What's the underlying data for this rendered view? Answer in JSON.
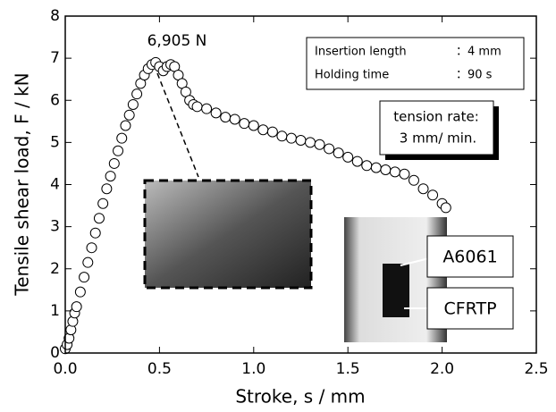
{
  "chart_data": {
    "type": "scatter",
    "x_label": "Stroke, s / mm",
    "y_label": "Tensile shear load, F / kN",
    "x": [
      0,
      0.01,
      0.02,
      0.03,
      0.04,
      0.05,
      0.06,
      0.08,
      0.1,
      0.12,
      0.14,
      0.16,
      0.18,
      0.2,
      0.22,
      0.24,
      0.26,
      0.28,
      0.3,
      0.32,
      0.34,
      0.36,
      0.38,
      0.4,
      0.42,
      0.44,
      0.46,
      0.48,
      0.5,
      0.52,
      0.54,
      0.56,
      0.58,
      0.6,
      0.62,
      0.64,
      0.66,
      0.68,
      0.7,
      0.75,
      0.8,
      0.85,
      0.9,
      0.95,
      1.0,
      1.05,
      1.1,
      1.15,
      1.2,
      1.25,
      1.3,
      1.35,
      1.4,
      1.45,
      1.5,
      1.55,
      1.6,
      1.65,
      1.7,
      1.75,
      1.8,
      1.85,
      1.9,
      1.95,
      2.0,
      2.02
    ],
    "values": [
      0.1,
      0.2,
      0.35,
      0.55,
      0.75,
      0.95,
      1.1,
      1.45,
      1.8,
      2.15,
      2.5,
      2.85,
      3.2,
      3.55,
      3.9,
      4.2,
      4.5,
      4.8,
      5.1,
      5.4,
      5.65,
      5.9,
      6.15,
      6.4,
      6.6,
      6.75,
      6.85,
      6.9,
      6.8,
      6.7,
      6.8,
      6.85,
      6.8,
      6.6,
      6.4,
      6.2,
      6.0,
      5.9,
      5.85,
      5.8,
      5.7,
      5.6,
      5.55,
      5.45,
      5.4,
      5.3,
      5.25,
      5.15,
      5.1,
      5.05,
      5.0,
      4.95,
      4.85,
      4.75,
      4.65,
      4.55,
      4.45,
      4.4,
      4.35,
      4.3,
      4.25,
      4.1,
      3.9,
      3.75,
      3.55,
      3.45
    ],
    "color": "#000000",
    "xlim": [
      0,
      2.5
    ],
    "ylim": [
      0,
      8
    ],
    "xticks": [
      {
        "value": 0,
        "label": "0.0"
      },
      0.5,
      1.5,
      {
        "value": 1,
        "label": "1.0"
      },
      {
        "value": 2,
        "label": "2.0"
      },
      2.5
    ],
    "yticks": [
      0,
      1,
      2,
      3,
      4,
      5,
      6,
      7,
      8
    ],
    "peak_label": "6,905 N",
    "conditions": [
      [
        "Insertion length",
        "：4 mm"
      ],
      [
        "Holding time",
        "：90 s"
      ]
    ],
    "tension_rate": [
      "tension rate:",
      "3 mm/ min."
    ],
    "inset_labels": [
      "A6061",
      "CFRTP"
    ]
  }
}
